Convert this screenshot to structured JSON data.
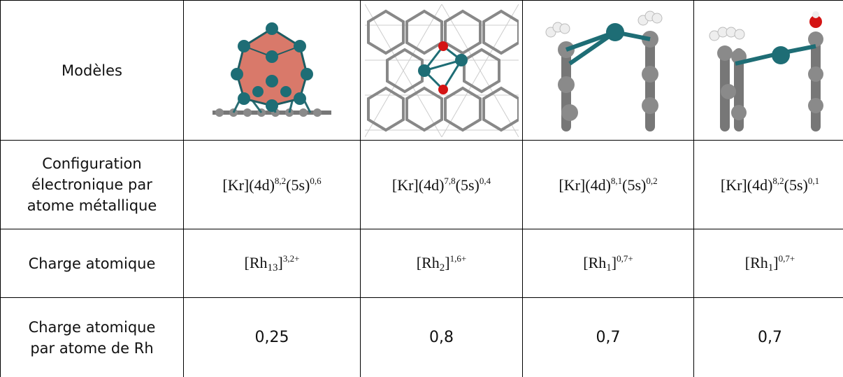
{
  "table": {
    "row_labels": [
      [
        "Modèles"
      ],
      [
        "Configuration",
        "électronique par",
        "atome métallique"
      ],
      [
        "Charge atomique"
      ],
      [
        "Charge atomique",
        "par atome de Rh"
      ]
    ],
    "rows": [
      [
        [
          {
            "text": "[Kr](4d)"
          },
          {
            "text": "8,2",
            "style": "sup"
          },
          {
            "text": "(5s)"
          },
          {
            "text": "0,6",
            "style": "sup"
          }
        ],
        [
          {
            "text": "[Kr](4d)"
          },
          {
            "text": "7,8",
            "style": "sup"
          },
          {
            "text": "(5s)"
          },
          {
            "text": "0,4",
            "style": "sup"
          }
        ],
        [
          {
            "text": "[Kr](4d)"
          },
          {
            "text": "8,1",
            "style": "sup"
          },
          {
            "text": "(5s)"
          },
          {
            "text": "0,2",
            "style": "sup"
          }
        ],
        [
          {
            "text": "[Kr](4d)"
          },
          {
            "text": "8,2",
            "style": "sup"
          },
          {
            "text": "(5s)"
          },
          {
            "text": "0,1",
            "style": "sup"
          }
        ]
      ],
      [
        [
          {
            "text": "[Rh"
          },
          {
            "text": "13",
            "style": "sub"
          },
          {
            "text": "]"
          },
          {
            "text": "3,2+",
            "style": "sup"
          }
        ],
        [
          {
            "text": "[Rh"
          },
          {
            "text": "2",
            "style": "sub"
          },
          {
            "text": "]"
          },
          {
            "text": "1,6+",
            "style": "sup"
          }
        ],
        [
          {
            "text": "[Rh"
          },
          {
            "text": "1",
            "style": "sub"
          },
          {
            "text": "]"
          },
          {
            "text": "0,7+",
            "style": "sup"
          }
        ],
        [
          {
            "text": "[Rh"
          },
          {
            "text": "1",
            "style": "sub"
          },
          {
            "text": "]"
          },
          {
            "text": "0,7+",
            "style": "sup"
          }
        ]
      ],
      [
        [
          {
            "text": "0,25"
          }
        ],
        [
          {
            "text": "0,8"
          }
        ],
        [
          {
            "text": "0,7"
          }
        ],
        [
          {
            "text": "0,7"
          }
        ]
      ]
    ]
  }
}
